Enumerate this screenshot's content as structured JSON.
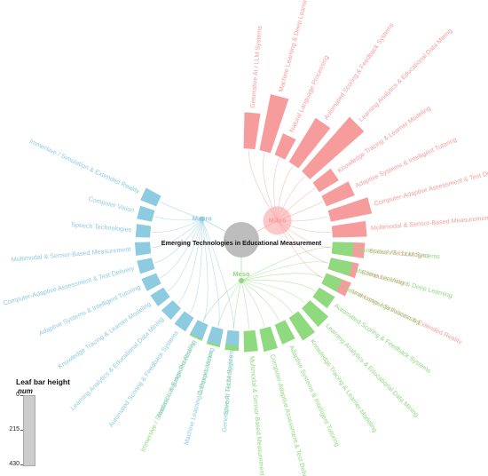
{
  "title": "Emerging Technologies in Educational Measurement",
  "colors": {
    "macro": "#8ccbe0",
    "micro": "#f79c9c",
    "meso": "#8fd97e",
    "root": "#bdbdbd"
  },
  "groups": [
    {
      "key": "micro",
      "label": "Micro",
      "items": [
        {
          "label": "Generative AI / LLM Systems",
          "value": 95
        },
        {
          "label": "Machine Learning & Deep Learning",
          "value": 150
        },
        {
          "label": "Natural Language Processing",
          "value": 60
        },
        {
          "label": "Automated Scoring & Feedback Systems",
          "value": 135
        },
        {
          "label": "Learning Analytics & Educational Data Mining",
          "value": 190
        },
        {
          "label": "Knowledge Tracing & Learner Modeling",
          "value": 60
        },
        {
          "label": "Adaptive Systems & Intelligent Tutoring",
          "value": 80
        },
        {
          "label": "Computer-Adaptive Assessment & Test Delivery",
          "value": 110
        },
        {
          "label": "Multimodal & Sensor-Based Measurement",
          "value": 90
        },
        {
          "label": "Speech Technologies",
          "value": 85
        },
        {
          "label": "Computer Vision",
          "value": 75
        },
        {
          "label": "Immersive / Simulation & Extended Reality",
          "value": 70
        }
      ]
    },
    {
      "key": "meso",
      "label": "Meso",
      "items": [
        {
          "label": "Generative AI / LLM Systems",
          "value": 55
        },
        {
          "label": "Machine Learning & Deep Learning",
          "value": 58
        },
        {
          "label": "Natural Language Processing",
          "value": 45
        },
        {
          "label": "Automated Scoring & Feedback Systems",
          "value": 48
        },
        {
          "label": "Learning Analytics & Educational Data Mining",
          "value": 65
        },
        {
          "label": "Knowledge Tracing & Learner Modeling",
          "value": 70
        },
        {
          "label": "Adaptive Systems & Intelligent Tutoring",
          "value": 55
        },
        {
          "label": "Computer-Adaptive Assessment & Test Delivery",
          "value": 60
        },
        {
          "label": "Multimodal & Sensor-Based Measurement",
          "value": 55
        },
        {
          "label": "Speech Technologies",
          "value": 52
        },
        {
          "label": "Computer Vision",
          "value": 48
        },
        {
          "label": "Immersive / Simulation & Extended Reality",
          "value": 45
        }
      ]
    },
    {
      "key": "macro",
      "label": "Macro",
      "items": [
        {
          "label": "Generative AI / LLM Systems",
          "value": 38
        },
        {
          "label": "Machine Learning & Deep Learning",
          "value": 42
        },
        {
          "label": "Natural Language Processing",
          "value": 40
        },
        {
          "label": "Automated Scoring & Feedback Systems",
          "value": 42
        },
        {
          "label": "Learning Analytics & Educational Data Mining",
          "value": 40
        },
        {
          "label": "Knowledge Tracing & Learner Modeling",
          "value": 40
        },
        {
          "label": "Adaptive Systems & Intelligent Tutoring",
          "value": 42
        },
        {
          "label": "Computer-Adaptive Assessment & Test Delivery",
          "value": 40
        },
        {
          "label": "Multimodal & Sensor-Based Measurement",
          "value": 40
        },
        {
          "label": "Speech Technologies",
          "value": 38
        },
        {
          "label": "Computer Vision",
          "value": 40
        },
        {
          "label": "Immersive / Simulation & Extended Reality",
          "value": 45
        }
      ]
    }
  ],
  "legend": {
    "title": "Leaf bar height",
    "subtitle": "num",
    "ticks": [
      "0",
      "215",
      "430"
    ],
    "max": 430
  }
}
